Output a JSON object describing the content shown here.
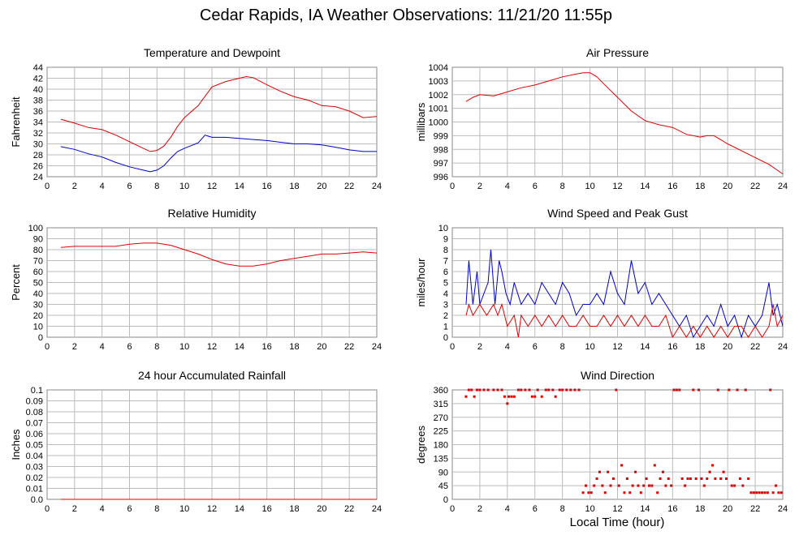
{
  "title": "Cedar Rapids, IA Weather Observations: 11/21/20 11:55p",
  "x_axis_title": "Local Time (hour)",
  "colors": {
    "red": "#e00000",
    "blue": "#0000cc",
    "grid": "#bbbbbb",
    "frame": "#888888"
  },
  "chart_data": [
    {
      "id": "temperature",
      "type": "line",
      "title": "Temperature and Dewpoint",
      "xlabel": "",
      "ylabel": "Fahrenheit",
      "xlim": [
        0,
        24
      ],
      "ylim": [
        24,
        44
      ],
      "yticks": [
        24,
        26,
        28,
        30,
        32,
        34,
        36,
        38,
        40,
        42,
        44
      ],
      "ytick_labels": [
        "24",
        "26",
        "28",
        "30",
        "32",
        "34",
        "36",
        "38",
        "40",
        "42",
        "44"
      ],
      "xticks": [
        2,
        4,
        6,
        8,
        10,
        12,
        14,
        16,
        18,
        20,
        22,
        24
      ],
      "xtick_labels": [
        "0",
        "2",
        "4",
        "6",
        "8",
        "10",
        "12",
        "14",
        "16",
        "18",
        "20",
        "22",
        "24"
      ],
      "grid": true,
      "series": [
        {
          "color": "red",
          "x": [
            1,
            2,
            3,
            4,
            5,
            6,
            7,
            7.5,
            8,
            8.5,
            9,
            9.5,
            10,
            11,
            12,
            13,
            14,
            14.5,
            15,
            16,
            17,
            18,
            19,
            20,
            21,
            22,
            23,
            24
          ],
          "y": [
            34.5,
            33.8,
            33.0,
            32.6,
            31.6,
            30.4,
            29.2,
            28.6,
            28.8,
            29.6,
            31.2,
            33.2,
            34.8,
            37.0,
            40.4,
            41.4,
            42.0,
            42.3,
            42.1,
            40.8,
            39.6,
            38.6,
            38.0,
            37.0,
            36.8,
            36.0,
            34.8,
            35.0
          ]
        },
        {
          "color": "blue",
          "x": [
            1,
            2,
            3,
            4,
            5,
            6,
            7,
            7.5,
            8,
            8.5,
            9,
            9.5,
            10,
            11,
            11.5,
            12,
            13,
            14,
            15,
            16,
            17,
            18,
            19,
            20,
            21,
            22,
            23,
            24
          ],
          "y": [
            29.5,
            29.0,
            28.2,
            27.6,
            26.6,
            25.8,
            25.2,
            24.9,
            25.2,
            26.0,
            27.4,
            28.6,
            29.2,
            30.2,
            31.6,
            31.2,
            31.2,
            31.0,
            30.8,
            30.6,
            30.3,
            30.0,
            30.0,
            29.8,
            29.4,
            28.9,
            28.6,
            28.6
          ]
        }
      ]
    },
    {
      "id": "pressure",
      "type": "line",
      "title": "Air Pressure",
      "xlabel": "",
      "ylabel": "millibars",
      "xlim": [
        0,
        24
      ],
      "ylim": [
        996,
        1004
      ],
      "yticks": [
        996,
        997,
        998,
        999,
        1000,
        1001,
        1002,
        1003,
        1004
      ],
      "ytick_labels": [
        "996",
        "997",
        "998",
        "999",
        "1000",
        "1001",
        "1002",
        "1003",
        "1004"
      ],
      "xticks": [
        2,
        4,
        6,
        8,
        10,
        12,
        14,
        16,
        18,
        20,
        22,
        24
      ],
      "xtick_labels": [
        "0",
        "2",
        "4",
        "6",
        "8",
        "10",
        "12",
        "14",
        "16",
        "18",
        "20",
        "22",
        "24"
      ],
      "grid": true,
      "series": [
        {
          "color": "red",
          "x": [
            1,
            1.5,
            2,
            3,
            4,
            5,
            6,
            7,
            8,
            9,
            9.5,
            10,
            10.5,
            11,
            12,
            13,
            14,
            15,
            16,
            17,
            18,
            18.5,
            19,
            20,
            21,
            22,
            23,
            24
          ],
          "y": [
            1001.5,
            1001.8,
            1002.0,
            1001.9,
            1002.2,
            1002.5,
            1002.7,
            1003.0,
            1003.3,
            1003.5,
            1003.6,
            1003.6,
            1003.3,
            1002.8,
            1001.8,
            1000.8,
            1000.1,
            999.8,
            999.6,
            999.1,
            998.9,
            999.0,
            999.0,
            998.4,
            997.9,
            997.4,
            996.9,
            996.2
          ]
        }
      ]
    },
    {
      "id": "humidity",
      "type": "line",
      "title": "Relative Humidity",
      "xlabel": "",
      "ylabel": "Percent",
      "xlim": [
        0,
        24
      ],
      "ylim": [
        0,
        100
      ],
      "yticks": [
        0,
        10,
        20,
        30,
        40,
        50,
        60,
        70,
        80,
        90,
        100
      ],
      "ytick_labels": [
        "0",
        "10",
        "20",
        "30",
        "40",
        "50",
        "60",
        "70",
        "80",
        "90",
        "100"
      ],
      "xticks": [
        2,
        4,
        6,
        8,
        10,
        12,
        14,
        16,
        18,
        20,
        22,
        24
      ],
      "xtick_labels": [
        "0",
        "2",
        "4",
        "6",
        "8",
        "10",
        "12",
        "14",
        "16",
        "18",
        "20",
        "22",
        "24"
      ],
      "grid": true,
      "series": [
        {
          "color": "red",
          "x": [
            1,
            2,
            3,
            4,
            5,
            6,
            7,
            8,
            9,
            10,
            11,
            12,
            13,
            14,
            15,
            16,
            17,
            18,
            19,
            20,
            21,
            22,
            23,
            24
          ],
          "y": [
            82,
            83,
            83,
            83,
            83,
            85,
            86,
            86,
            84,
            80,
            76,
            71,
            67,
            65,
            65,
            67,
            70,
            72,
            74,
            76,
            76,
            77,
            78,
            77
          ]
        }
      ]
    },
    {
      "id": "wind",
      "type": "line",
      "title": "Wind Speed and Peak Gust",
      "xlabel": "",
      "ylabel": "miles/hour",
      "xlim": [
        0,
        24
      ],
      "ylim": [
        0,
        10
      ],
      "yticks": [
        0,
        1,
        2,
        3,
        4,
        5,
        6,
        7,
        8,
        9,
        10
      ],
      "ytick_labels": [
        "0",
        "1",
        "2",
        "3",
        "4",
        "5",
        "6",
        "7",
        "8",
        "9",
        "10"
      ],
      "xticks": [
        2,
        4,
        6,
        8,
        10,
        12,
        14,
        16,
        18,
        20,
        22,
        24
      ],
      "xtick_labels": [
        "0",
        "2",
        "4",
        "6",
        "8",
        "10",
        "12",
        "14",
        "16",
        "18",
        "20",
        "22",
        "24"
      ],
      "grid": true,
      "series": [
        {
          "color": "blue",
          "x": [
            1,
            1.2,
            1.5,
            1.8,
            2,
            2.3,
            2.6,
            2.8,
            3.1,
            3.4,
            3.6,
            3.9,
            4.2,
            4.5,
            5,
            5.5,
            6,
            6.5,
            7,
            7.5,
            8,
            8.5,
            9,
            9.5,
            10,
            10.5,
            11,
            11.5,
            12,
            12.5,
            13,
            13.5,
            14,
            14.5,
            15,
            15.5,
            16,
            16.5,
            17,
            17.5,
            18,
            18.5,
            19,
            19.5,
            20,
            20.5,
            21,
            21.5,
            22,
            22.5,
            23,
            23.3,
            23.6,
            24
          ],
          "y": [
            3,
            7,
            3,
            6,
            3,
            4,
            5,
            8,
            3,
            7,
            6,
            4,
            3,
            5,
            3,
            4,
            3,
            5,
            4,
            3,
            5,
            4,
            2,
            3,
            3,
            4,
            3,
            6,
            4,
            3,
            7,
            4,
            5,
            3,
            4,
            3,
            2,
            1,
            2,
            0,
            1,
            2,
            1,
            3,
            1,
            2,
            0,
            2,
            1,
            2,
            5,
            2,
            3,
            1
          ]
        },
        {
          "color": "red",
          "x": [
            1,
            1.2,
            1.5,
            2,
            2.5,
            3,
            3.3,
            3.6,
            4,
            4.5,
            4.8,
            5,
            5.5,
            6,
            6.5,
            7,
            7.5,
            8,
            8.5,
            9,
            9.5,
            10,
            10.5,
            11,
            11.5,
            12,
            12.5,
            13,
            13.5,
            14,
            14.5,
            15,
            15.5,
            16,
            16.5,
            17,
            17.5,
            18,
            18.5,
            19,
            19.5,
            20,
            20.5,
            21,
            21.5,
            22,
            22.5,
            23,
            23.3,
            23.6,
            24
          ],
          "y": [
            2,
            3,
            2,
            3,
            2,
            3,
            2,
            3,
            1,
            2,
            0,
            2,
            1,
            2,
            1,
            2,
            1,
            2,
            1,
            1,
            2,
            1,
            1,
            2,
            1,
            2,
            1,
            2,
            1,
            2,
            1,
            1,
            2,
            0,
            1,
            0,
            1,
            0,
            1,
            0,
            1,
            0,
            1,
            1,
            0,
            1,
            0,
            1,
            3,
            1,
            2
          ]
        }
      ]
    },
    {
      "id": "rainfall",
      "type": "line",
      "title": "24 hour Accumulated Rainfall",
      "xlabel": "",
      "ylabel": "Inches",
      "xlim": [
        0,
        24
      ],
      "ylim": [
        0,
        0.1
      ],
      "yticks": [
        0,
        0.01,
        0.02,
        0.03,
        0.04,
        0.05,
        0.06,
        0.07,
        0.08,
        0.09,
        0.1
      ],
      "ytick_labels": [
        "0.0",
        "0.01",
        "0.02",
        "0.03",
        "0.04",
        "0.05",
        "0.06",
        "0.07",
        "0.08",
        "0.09",
        "0.1"
      ],
      "xticks": [
        2,
        4,
        6,
        8,
        10,
        12,
        14,
        16,
        18,
        20,
        22,
        24
      ],
      "xtick_labels": [
        "0",
        "2",
        "4",
        "6",
        "8",
        "10",
        "12",
        "14",
        "16",
        "18",
        "20",
        "22",
        "24"
      ],
      "grid": true,
      "series": [
        {
          "color": "red",
          "x": [
            1,
            24
          ],
          "y": [
            0,
            0
          ]
        }
      ]
    },
    {
      "id": "direction",
      "type": "scatter",
      "title": "Wind Direction",
      "xlabel": "Local Time (hour)",
      "ylabel": "degrees",
      "xlim": [
        0,
        24
      ],
      "ylim": [
        0,
        360
      ],
      "yticks": [
        0,
        45,
        90,
        135,
        180,
        225,
        270,
        315,
        360
      ],
      "ytick_labels": [
        "0",
        "45",
        "90",
        "135",
        "180",
        "225",
        "270",
        "315",
        "360"
      ],
      "xticks": [
        2,
        4,
        6,
        8,
        10,
        12,
        14,
        16,
        18,
        20,
        22,
        24
      ],
      "xtick_labels": [
        "0",
        "2",
        "4",
        "6",
        "8",
        "10",
        "12",
        "14",
        "16",
        "18",
        "20",
        "22",
        "24"
      ],
      "grid": true,
      "series": [
        {
          "color": "red",
          "x": [
            1.0,
            1.2,
            1.4,
            1.6,
            1.8,
            2.0,
            2.3,
            2.6,
            3.0,
            3.3,
            3.6,
            3.8,
            4.0,
            4.1,
            4.3,
            4.5,
            4.8,
            5.0,
            5.3,
            5.6,
            5.8,
            6.0,
            6.2,
            6.5,
            6.8,
            7.0,
            7.3,
            7.5,
            7.8,
            8.0,
            8.3,
            8.6,
            8.9,
            9.2,
            9.5,
            9.7,
            9.9,
            10.1,
            10.3,
            10.5,
            10.7,
            10.9,
            11.1,
            11.3,
            11.5,
            11.7,
            11.9,
            12.1,
            12.3,
            12.5,
            12.7,
            12.9,
            13.1,
            13.3,
            13.5,
            13.7,
            13.9,
            14.1,
            14.3,
            14.5,
            14.7,
            14.9,
            15.1,
            15.3,
            15.5,
            15.7,
            15.9,
            16.1,
            16.3,
            16.5,
            16.7,
            16.9,
            17.1,
            17.3,
            17.5,
            17.7,
            17.9,
            18.1,
            18.3,
            18.5,
            18.7,
            18.9,
            19.1,
            19.3,
            19.5,
            19.7,
            19.9,
            20.1,
            20.3,
            20.5,
            20.7,
            20.9,
            21.1,
            21.3,
            21.5,
            21.7,
            21.9,
            22.1,
            22.3,
            22.5,
            22.7,
            22.9,
            23.1,
            23.3,
            23.5,
            23.7,
            23.9
          ],
          "y": [
            338,
            360,
            360,
            338,
            360,
            360,
            360,
            360,
            360,
            360,
            360,
            338,
            315,
            338,
            338,
            338,
            360,
            360,
            360,
            360,
            338,
            338,
            360,
            338,
            360,
            360,
            360,
            338,
            360,
            360,
            360,
            360,
            360,
            360,
            22,
            45,
            22,
            22,
            45,
            68,
            90,
            45,
            22,
            90,
            45,
            68,
            360,
            45,
            112,
            22,
            68,
            22,
            45,
            90,
            45,
            22,
            45,
            68,
            45,
            45,
            112,
            22,
            68,
            90,
            45,
            68,
            45,
            360,
            360,
            360,
            68,
            45,
            68,
            68,
            360,
            68,
            360,
            68,
            45,
            68,
            90,
            112,
            68,
            360,
            68,
            90,
            68,
            360,
            45,
            45,
            360,
            68,
            45,
            360,
            68,
            22,
            22,
            22,
            22,
            22,
            22,
            22,
            360,
            22,
            45,
            22,
            22
          ]
        }
      ]
    }
  ]
}
